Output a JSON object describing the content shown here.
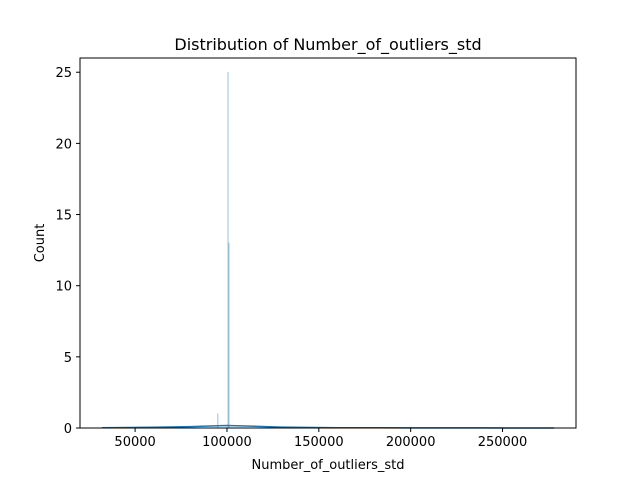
{
  "chart_data": {
    "type": "bar",
    "title": "Distribution of Number_of_outliers_std",
    "xlabel": "Number_of_outliers_std",
    "ylabel": "Count",
    "xlim": [
      20000,
      290000
    ],
    "ylim": [
      0,
      26
    ],
    "x_ticks": [
      50000,
      100000,
      150000,
      200000,
      250000
    ],
    "x_tick_labels": [
      "50000",
      "100000",
      "150000",
      "200000",
      "250000"
    ],
    "y_ticks": [
      0,
      5,
      10,
      15,
      20,
      25
    ],
    "y_tick_labels": [
      "0",
      "5",
      "10",
      "15",
      "20",
      "25"
    ],
    "grid": false,
    "bars": [
      {
        "x": 95000,
        "width": 300,
        "count": 1
      },
      {
        "x": 100500,
        "width": 120,
        "count": 25
      },
      {
        "x": 101000,
        "width": 120,
        "count": 13
      }
    ],
    "kde": {
      "x": [
        32000,
        60000,
        80000,
        95000,
        100000,
        110000,
        130000,
        160000,
        200000,
        240000,
        278000
      ],
      "y": [
        0.02,
        0.05,
        0.1,
        0.16,
        0.18,
        0.14,
        0.06,
        0.02,
        0.01,
        0.005,
        0.0
      ]
    },
    "colors": {
      "bar": "#1f77b4",
      "kde": "#1f77b4",
      "axis": "#000000"
    }
  }
}
